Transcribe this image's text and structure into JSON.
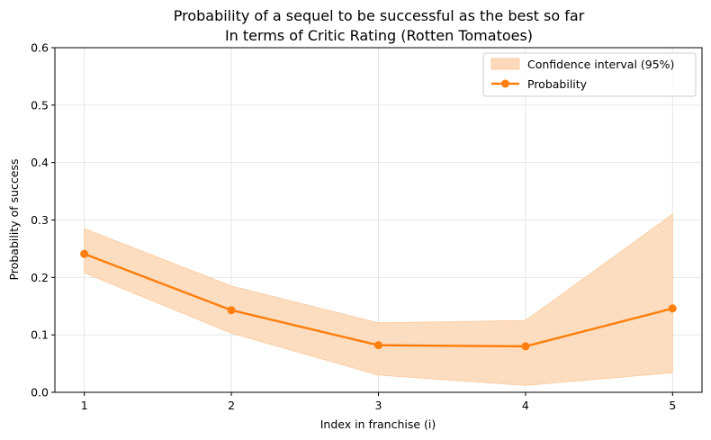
{
  "chart_data": {
    "type": "line",
    "title": "Probability of a sequel to be successful as the best so far",
    "subtitle": "In terms of Critic Rating (Rotten Tomatoes)",
    "xlabel": "Index in franchise (i)",
    "ylabel": "Probability of success",
    "x": [
      1,
      2,
      3,
      4,
      5
    ],
    "xlim": [
      0.8,
      5.2
    ],
    "ylim": [
      0.0,
      0.6
    ],
    "yticks": [
      "0.0",
      "0.1",
      "0.2",
      "0.3",
      "0.4",
      "0.5",
      "0.6"
    ],
    "xticks": [
      "1",
      "2",
      "3",
      "4",
      "5"
    ],
    "grid": true,
    "legend_position": "top-right",
    "series": [
      {
        "name": "Probability",
        "values": [
          0.241,
          0.143,
          0.082,
          0.08,
          0.146
        ],
        "color": "#ff7f0e"
      }
    ],
    "confidence_interval": {
      "name": "Confidence interval (95%)",
      "lower": [
        0.208,
        0.103,
        0.03,
        0.012,
        0.034
      ],
      "upper": [
        0.285,
        0.185,
        0.121,
        0.125,
        0.31
      ],
      "color": "#fdd9b9"
    }
  }
}
